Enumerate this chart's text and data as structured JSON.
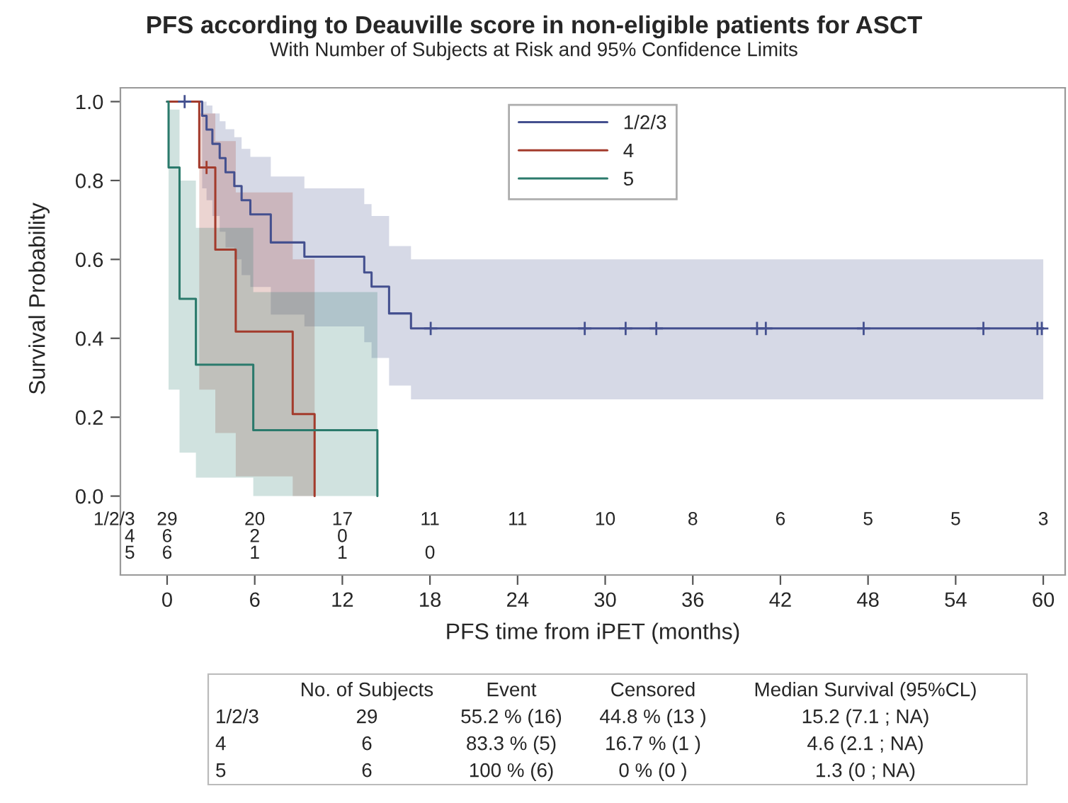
{
  "chart_data": {
    "type": "step",
    "title": "PFS according to Deauville score in non-eligible patients for ASCT",
    "subtitle": "With Number of Subjects at Risk and 95% Confidence Limits",
    "xlabel": "PFS time from iPET (months)",
    "ylabel": "Survival Probability",
    "series": [
      {
        "name": "1/2/3",
        "color": "#44508f",
        "x": [
          0,
          2.4,
          2.7,
          3.1,
          3.6,
          4.0,
          4.6,
          5.1,
          5.7,
          7.1,
          9.4,
          13.5,
          14.0,
          15.2,
          16.7,
          60
        ],
        "values": [
          1.0,
          0.964,
          0.929,
          0.893,
          0.857,
          0.821,
          0.786,
          0.75,
          0.714,
          0.643,
          0.607,
          0.567,
          0.531,
          0.463,
          0.425,
          0.425
        ],
        "upper": [
          1.0,
          1.0,
          0.99,
          0.97,
          0.95,
          0.93,
          0.91,
          0.88,
          0.86,
          0.81,
          0.78,
          0.74,
          0.71,
          0.634,
          0.6,
          0.6
        ],
        "lower": [
          1.0,
          0.78,
          0.75,
          0.71,
          0.67,
          0.63,
          0.6,
          0.56,
          0.53,
          0.46,
          0.43,
          0.39,
          0.35,
          0.28,
          0.245,
          0.245
        ]
      },
      {
        "name": "4",
        "color": "#a33b2c",
        "x": [
          0,
          2.2,
          3.3,
          4.7,
          8.6,
          10.1
        ],
        "values": [
          1.0,
          0.833,
          0.625,
          0.417,
          0.208,
          0.0
        ],
        "upper": [
          1.0,
          0.97,
          0.9,
          0.77,
          0.6,
          0.0
        ],
        "lower": [
          1.0,
          0.27,
          0.16,
          0.05,
          0.0,
          0.0
        ]
      },
      {
        "name": "5",
        "color": "#2b7a6c",
        "x": [
          0,
          0.1,
          0.85,
          1.97,
          5.9,
          14.4
        ],
        "values": [
          1.0,
          0.833,
          0.5,
          0.333,
          0.167,
          0.0
        ],
        "upper": [
          1.0,
          0.98,
          0.8,
          0.68,
          0.517,
          0.0
        ],
        "lower": [
          1.0,
          0.27,
          0.11,
          0.047,
          0.0,
          0.0
        ]
      },
      {
        "type": "scatter",
        "marker": "cross",
        "color": "#44508f",
        "x": [
          1.2,
          18.05,
          28.6,
          31.4,
          33.5,
          40.4,
          41.0,
          47.7,
          55.9,
          59.6,
          59.9
        ],
        "values": [
          1.0,
          0.425,
          0.425,
          0.425,
          0.425,
          0.425,
          0.425,
          0.425,
          0.425,
          0.425,
          0.425
        ]
      },
      {
        "type": "scatter",
        "marker": "cross",
        "color": "#a33b2c",
        "x": [
          2.7
        ],
        "values": [
          0.833
        ]
      }
    ],
    "xlim": [
      -3.2,
      61.5
    ],
    "ylim": [
      -0.2,
      1.035
    ],
    "xticks": [
      0,
      6,
      12,
      18,
      24,
      30,
      36,
      42,
      48,
      54,
      60
    ],
    "yticks": [
      {
        "value": 0,
        "label": "0.0"
      },
      {
        "value": 0.2,
        "label": "0.2"
      },
      {
        "value": 0.4,
        "label": "0.4"
      },
      {
        "value": 0.6,
        "label": "0.6"
      },
      {
        "value": 0.8,
        "label": "0.8"
      },
      {
        "value": 1,
        "label": "1.0"
      }
    ],
    "legend": "top",
    "grid": false,
    "annotations": [
      "1/2/3 29 20 17 11 11 10 8 6 5 5 3",
      "4 6 2 0",
      "5 6 1 1 0",
      "No. of Subjects",
      "Event",
      "Censored",
      "Median Survival (95%CL)",
      "1/2/3",
      "29",
      "55.2 % (16)",
      "44.8 % (13 )",
      "15.2 (7.1 ; NA)",
      "4",
      "6",
      "83.3 % (5)",
      "16.7 % (1 )",
      "4.6 (2.1 ; NA)",
      "5",
      "6",
      "100 % (6)",
      "0 % (0 )",
      "1.3 (0 ; NA)"
    ]
  }
}
